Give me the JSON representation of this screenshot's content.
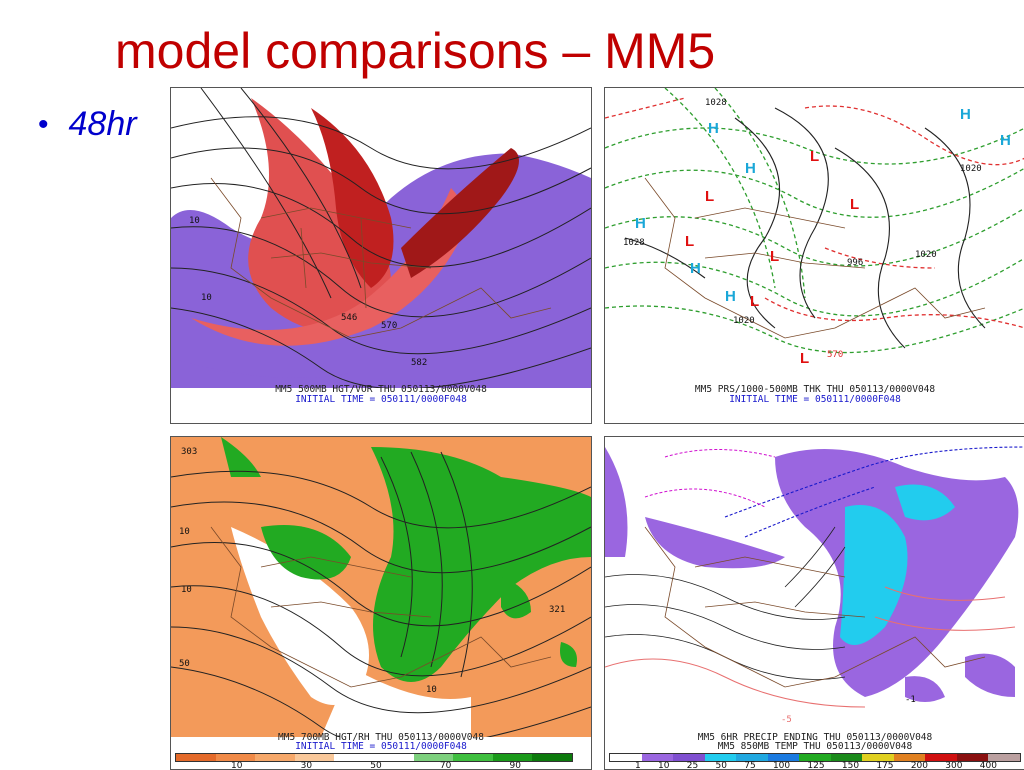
{
  "slide": {
    "title": "model comparisons – MM5",
    "bullet_mark": "•",
    "bullet_text": "48hr"
  },
  "panels": [
    {
      "id": "500mb",
      "caption_line1": "MM5 500MB HGT/VOR THU 050113/0000V048",
      "caption_line2": "INITIAL TIME = 050111/0000F048",
      "labels": [
        "570",
        "582",
        "10",
        "10",
        "546"
      ],
      "colors": {
        "vort_high": "#e04040",
        "vort_low": "#7b5fd6",
        "fill": "#9a66e0"
      }
    },
    {
      "id": "prs1000-500",
      "caption_line1": "MM5 PRS/1000-500MB THK THU 050113/0000V048",
      "caption_line2": "INITIAL TIME = 050111/0000F048",
      "labels": [
        "1028",
        "1028",
        "1020",
        "1020",
        "996",
        "1020",
        "570"
      ],
      "high_marker": "H",
      "low_marker": "L",
      "colors": {
        "high": "#1aa7d8",
        "low": "#e01010",
        "thickness_cold": "#2e9e2e",
        "thickness_warm": "#e03030"
      }
    },
    {
      "id": "700mb",
      "caption_line1": "MM5 700MB HGT/RH THU 050113/0000V048",
      "caption_line2": "INITIAL TIME = 050111/0000F048",
      "labels": [
        "303",
        "10",
        "10",
        "50",
        "321",
        "10"
      ],
      "colorbar_labels": [
        "10",
        "30",
        "50",
        "70",
        "90"
      ],
      "colors": {
        "dry": "#f0a060",
        "moist": "#22aa22"
      }
    },
    {
      "id": "precip",
      "caption_line1": "MM5 6HR PRECIP ENDING THU 050113/0000V048",
      "caption_line2": "MM5 850MB TEMP THU 050113/0000V048",
      "labels": [
        "-5",
        "-1"
      ],
      "colorbar_labels": [
        "1",
        "10",
        "25",
        "50",
        "75",
        "100",
        "125",
        "150",
        "175",
        "200",
        "300",
        "400"
      ],
      "colors": {
        "precip_light": "#9a66e0",
        "precip_heavy": "#22ccee"
      }
    }
  ]
}
